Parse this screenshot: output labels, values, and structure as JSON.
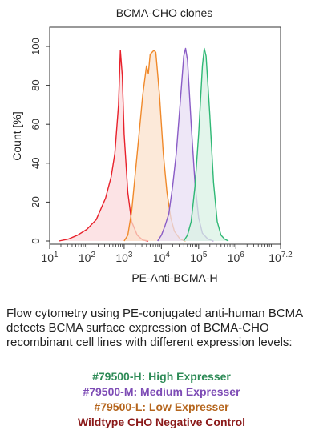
{
  "chart_data": {
    "type": "area",
    "title": "BCMA-CHO clones",
    "xlabel": "PE-Anti-BCMA-H",
    "ylabel": "Count [%]",
    "x_scale": "log",
    "xlim": [
      10,
      15848932
    ],
    "ylim": [
      0,
      100
    ],
    "x_ticks": [
      {
        "value": 10,
        "base": "10",
        "exp": "1"
      },
      {
        "value": 100,
        "base": "10",
        "exp": "2"
      },
      {
        "value": 1000,
        "base": "10",
        "exp": "3"
      },
      {
        "value": 10000,
        "base": "10",
        "exp": "4"
      },
      {
        "value": 100000,
        "base": "10",
        "exp": "5"
      },
      {
        "value": 1000000,
        "base": "10",
        "exp": "6"
      },
      {
        "value": 15848932,
        "base": "10",
        "exp": "7.2"
      }
    ],
    "y_ticks": [
      0,
      20,
      40,
      60,
      80,
      100
    ],
    "grid": false,
    "legend": "none",
    "series": [
      {
        "color": "#e8212b",
        "fill": "#fbd9dc",
        "points": [
          [
            17.8,
            0
          ],
          [
            31.6,
            1
          ],
          [
            56.2,
            3
          ],
          [
            100,
            6
          ],
          [
            178,
            11
          ],
          [
            316,
            22
          ],
          [
            447,
            33
          ],
          [
            562,
            45
          ],
          [
            708,
            70
          ],
          [
            794,
            98
          ],
          [
            891,
            85
          ],
          [
            1000,
            55
          ],
          [
            1259,
            25
          ],
          [
            1585,
            10
          ],
          [
            2239,
            3
          ],
          [
            3162,
            0.5
          ],
          [
            4467,
            0
          ]
        ]
      },
      {
        "color": "#f0892a",
        "fill": "#fbe2cc",
        "points": [
          [
            1000,
            0
          ],
          [
            1259,
            3
          ],
          [
            1585,
            15
          ],
          [
            2239,
            45
          ],
          [
            3162,
            75
          ],
          [
            3981,
            90
          ],
          [
            4467,
            86
          ],
          [
            5012,
            96
          ],
          [
            6310,
            98
          ],
          [
            7079,
            97
          ],
          [
            8913,
            75
          ],
          [
            11220,
            45
          ],
          [
            14125,
            25
          ],
          [
            17783,
            12
          ],
          [
            22387,
            5
          ],
          [
            31623,
            1
          ],
          [
            44668,
            0
          ]
        ]
      },
      {
        "color": "#8a5cc6",
        "fill": "#e8dff4",
        "points": [
          [
            7943,
            0
          ],
          [
            10000,
            3
          ],
          [
            12589,
            8
          ],
          [
            15849,
            14
          ],
          [
            19953,
            28
          ],
          [
            25119,
            45
          ],
          [
            31623,
            70
          ],
          [
            39811,
            95
          ],
          [
            44668,
            99
          ],
          [
            50119,
            93
          ],
          [
            63096,
            60
          ],
          [
            79433,
            30
          ],
          [
            100000,
            12
          ],
          [
            125893,
            4
          ],
          [
            177828,
            1
          ],
          [
            251189,
            0
          ]
        ]
      },
      {
        "color": "#2fb875",
        "fill": "#d9f2e4",
        "points": [
          [
            39811,
            0
          ],
          [
            50119,
            3
          ],
          [
            63096,
            10
          ],
          [
            79433,
            28
          ],
          [
            100000,
            55
          ],
          [
            125893,
            90
          ],
          [
            141254,
            99
          ],
          [
            158489,
            95
          ],
          [
            199526,
            65
          ],
          [
            251189,
            30
          ],
          [
            316228,
            10
          ],
          [
            398107,
            3
          ],
          [
            501187,
            1
          ],
          [
            630957,
            0
          ]
        ]
      }
    ]
  },
  "caption": "Flow cytometry using PE-conjugated anti-human BCMA detects BCMA surface expression of BCMA-CHO recombinant cell lines with different expression levels:",
  "legend_lines": [
    {
      "text": "#79500-H: High Expresser",
      "color": "#2e8b57"
    },
    {
      "text": "#79500-M: Medium Expresser",
      "color": "#7d4bb5"
    },
    {
      "text": "#79500-L: Low Expresser",
      "color": "#b5651d"
    },
    {
      "text": "Wildtype CHO Negative Control",
      "color": "#8b1a1a"
    }
  ]
}
